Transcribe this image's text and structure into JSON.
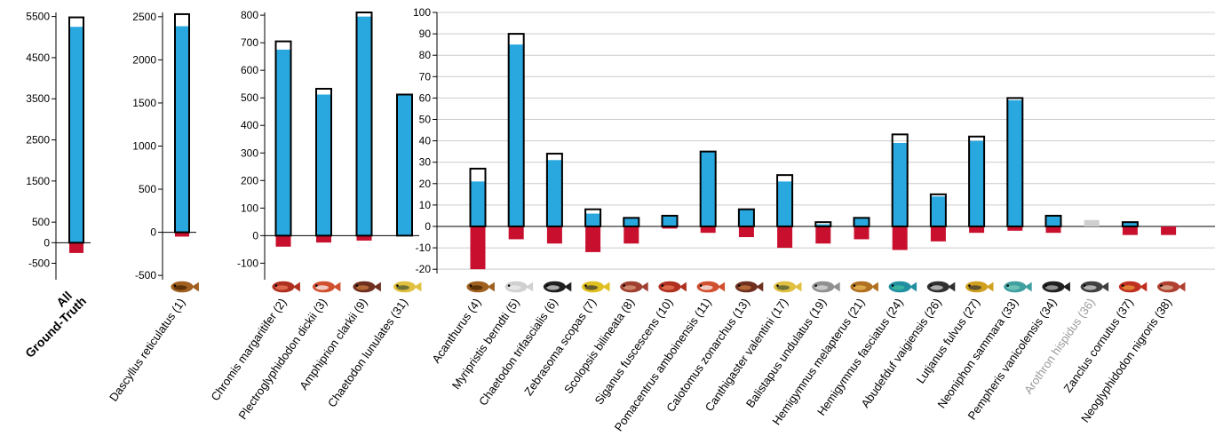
{
  "colors": {
    "detected": "#29a8e0",
    "negative": "#c8102e",
    "outline": "#000000",
    "grid": "#cccccc",
    "muted_bar": "#cfcfcf",
    "muted_label": "#9a9a9a"
  },
  "chart_data": [
    {
      "type": "bar",
      "title": "",
      "xlabel": "",
      "ylabel": "",
      "ylim": [
        -900,
        5600
      ],
      "yticks": [
        5500,
        4500,
        3500,
        2500,
        1500,
        500,
        0,
        -500
      ],
      "grid": false,
      "categories": [
        "All Ground-Truth"
      ],
      "series": [
        {
          "role": "total",
          "values": [
            5480
          ]
        },
        {
          "role": "detected",
          "values": [
            5250
          ]
        },
        {
          "role": "negative",
          "values": [
            -250
          ]
        }
      ]
    },
    {
      "type": "bar",
      "title": "",
      "xlabel": "",
      "ylabel": "",
      "ylim": [
        -550,
        2550
      ],
      "yticks": [
        2500,
        2000,
        1500,
        1000,
        500,
        0,
        -500
      ],
      "grid": false,
      "categories": [
        "Dascyllus reticulatus (1)"
      ],
      "series": [
        {
          "role": "total",
          "values": [
            2530
          ]
        },
        {
          "role": "detected",
          "values": [
            2390
          ]
        },
        {
          "role": "negative",
          "values": [
            -50
          ]
        }
      ]
    },
    {
      "type": "bar",
      "title": "",
      "xlabel": "",
      "ylabel": "",
      "ylim": [
        -160,
        810
      ],
      "yticks": [
        800,
        700,
        600,
        500,
        400,
        300,
        200,
        100,
        0,
        -100
      ],
      "grid": false,
      "categories": [
        "Chromis margaritifer (2)",
        "Plectroglyphidodon dickii (3)",
        "Amphiprion clarkii (9)",
        "Chaetodon lunulates (31)"
      ],
      "series": [
        {
          "role": "total",
          "values": [
            705,
            533,
            810,
            512
          ]
        },
        {
          "role": "detected",
          "values": [
            675,
            512,
            795,
            512
          ]
        },
        {
          "role": "negative",
          "values": [
            -40,
            -25,
            -18,
            0
          ]
        }
      ]
    },
    {
      "type": "bar",
      "title": "",
      "xlabel": "",
      "ylabel": "",
      "ylim": [
        -22,
        100
      ],
      "yticks": [
        100,
        90,
        80,
        70,
        60,
        50,
        40,
        30,
        20,
        10,
        0,
        -10,
        -20
      ],
      "grid": true,
      "categories": [
        "Acanthurus (4)",
        "Myripristis berndti (5)",
        "Chaetodon trifascialis (6)",
        "Zebrasoma scopas (7)",
        "Scolopsis bilineata (8)",
        "Siganus fuscescens (10)",
        "Pomacentrus amboinensis (11)",
        "Calotomus zonarchus (13)",
        "Canthigaster valentini (17)",
        "Balistapus undulatus (19)",
        "Hemigymnus melapterus (21)",
        "Hemigymnus fasciatus (24)",
        "Abudefduf vaigiensis (26)",
        "Lutjanus fulvus (27)",
        "Neoniphon sammara (33)",
        "Pempheris vanicolensis (34)",
        "Arothron hispidus (36)",
        "Zanclus cornutus (37)",
        "Neoglyphidodon nigroris (38)"
      ],
      "muted_categories": [
        "Arothron hispidus (36)"
      ],
      "series": [
        {
          "role": "total",
          "values": [
            27,
            90,
            34,
            8,
            4,
            5,
            35,
            8,
            24,
            2,
            4,
            43,
            15,
            42,
            60,
            5,
            3,
            2,
            0
          ]
        },
        {
          "role": "detected",
          "values": [
            21,
            85,
            31,
            6,
            4,
            5,
            35,
            8,
            21,
            1,
            4,
            39,
            14,
            40,
            59,
            5,
            3,
            2,
            0
          ]
        },
        {
          "role": "negative",
          "values": [
            -20,
            -6,
            -8,
            -12,
            -8,
            -1,
            -3,
            -5,
            -10,
            -8,
            -6,
            -11,
            -7,
            -3,
            -2,
            -3,
            0,
            -4,
            -4
          ]
        }
      ]
    }
  ]
}
